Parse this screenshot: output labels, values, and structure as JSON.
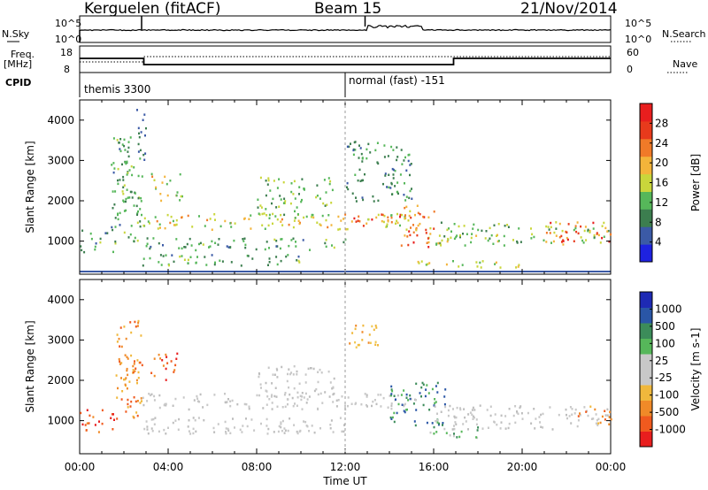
{
  "header": {
    "station": "Kerguelen (fitACF)",
    "beam": "Beam 15",
    "date": "21/Nov/2014"
  },
  "status_panels": {
    "nsky_label": "N.Sky",
    "nsearch_label": "N.Search",
    "freq_label_1": "Freq.",
    "freq_label_2": "[MHz]",
    "nave_label": "Nave",
    "cpid_label": "CPID",
    "left_ticks_top": [
      "10^5",
      "10^0"
    ],
    "right_ticks_top": [
      "10^5",
      "10^0"
    ],
    "left_ticks_freq": [
      "18",
      "8"
    ],
    "right_ticks_nave": [
      "60",
      "0"
    ],
    "cpid_segments": [
      {
        "label": "themis 3300",
        "start_hour": 0
      },
      {
        "label": "normal (fast) -151",
        "start_hour": 12
      }
    ]
  },
  "colors": {
    "power_scale": [
      "#1e22e0",
      "#3b5aa6",
      "#3c7e4f",
      "#56b75a",
      "#c9d63b",
      "#f3b43a",
      "#f07a28",
      "#e83a1c",
      "#e81e1e"
    ],
    "velocity_scale": [
      "#e81e1e",
      "#f05a1e",
      "#f08a28",
      "#f0b83c",
      "#c8c8c8",
      "#c8c8c8",
      "#56b75a",
      "#3c8c5a",
      "#2a56a6",
      "#1e2ab4"
    ]
  },
  "chart_data": [
    {
      "type": "heatmap",
      "title": "Power",
      "ylabel": "Slant Range [km]",
      "xlabel": "",
      "x_range_hours": [
        0,
        24
      ],
      "ylim": [
        180,
        4500
      ],
      "y_ticks": [
        1000,
        2000,
        3000,
        4000
      ],
      "colorbar_label": "Power [dB]",
      "colorbar_ticks": [
        "4",
        "8",
        "12",
        "16",
        "20",
        "24",
        "28"
      ],
      "colorbar_range": [
        0,
        30
      ],
      "scatter_regions": [
        {
          "t0": 0.0,
          "t1": 1.6,
          "r0": 700,
          "r1": 1300,
          "v0": 6,
          "v1": 16
        },
        {
          "t0": 1.4,
          "t1": 2.8,
          "r0": 900,
          "r1": 3600,
          "v0": 6,
          "v1": 14
        },
        {
          "t0": 2.5,
          "t1": 3.0,
          "r0": 3000,
          "r1": 4300,
          "v0": 4,
          "v1": 10
        },
        {
          "t0": 3.2,
          "t1": 4.6,
          "r0": 2000,
          "r1": 2700,
          "v0": 10,
          "v1": 22
        },
        {
          "t0": 2.8,
          "t1": 15.2,
          "r0": 1300,
          "r1": 1700,
          "v0": 10,
          "v1": 22
        },
        {
          "t0": 2.8,
          "t1": 12.0,
          "r0": 800,
          "r1": 1100,
          "v0": 6,
          "v1": 14
        },
        {
          "t0": 2.8,
          "t1": 10.0,
          "r0": 400,
          "r1": 700,
          "v0": 6,
          "v1": 14
        },
        {
          "t0": 8.0,
          "t1": 11.5,
          "r0": 1600,
          "r1": 2600,
          "v0": 8,
          "v1": 16
        },
        {
          "t0": 12.0,
          "t1": 14.5,
          "r0": 1400,
          "r1": 1700,
          "v0": 16,
          "v1": 28
        },
        {
          "t0": 12.0,
          "t1": 15.0,
          "r0": 2000,
          "r1": 3500,
          "v0": 6,
          "v1": 12
        },
        {
          "t0": 14.5,
          "t1": 16.0,
          "r0": 900,
          "r1": 2000,
          "v0": 14,
          "v1": 28
        },
        {
          "t0": 15.0,
          "t1": 16.0,
          "r0": 850,
          "r1": 1100,
          "v0": 22,
          "v1": 30
        },
        {
          "t0": 16.0,
          "t1": 24.0,
          "r0": 900,
          "r1": 1500,
          "v0": 8,
          "v1": 18
        },
        {
          "t0": 15.0,
          "t1": 20.0,
          "r0": 350,
          "r1": 550,
          "v0": 10,
          "v1": 20
        },
        {
          "t0": 21.0,
          "t1": 24.0,
          "r0": 1000,
          "r1": 1500,
          "v0": 16,
          "v1": 28
        }
      ]
    },
    {
      "type": "heatmap",
      "title": "Velocity",
      "ylabel": "Slant Range [km]",
      "xlabel": "Time UT",
      "x_ticks": [
        "00:00",
        "04:00",
        "08:00",
        "12:00",
        "16:00",
        "20:00",
        "00:00"
      ],
      "x_range_hours": [
        0,
        24
      ],
      "ylim": [
        180,
        4500
      ],
      "y_ticks": [
        1000,
        2000,
        3000,
        4000
      ],
      "colorbar_label": "Velocity [m s-1]",
      "colorbar_ticks": [
        "-1000",
        "-500",
        "-100",
        "-25",
        "25",
        "100",
        "500",
        "1000"
      ],
      "scatter_regions": [
        {
          "t0": 0.0,
          "t1": 1.6,
          "r0": 700,
          "r1": 1300,
          "v": "neg-strong"
        },
        {
          "t0": 1.6,
          "t1": 2.8,
          "r0": 1000,
          "r1": 3500,
          "v": "neg-mid"
        },
        {
          "t0": 3.2,
          "t1": 4.6,
          "r0": 2000,
          "r1": 2700,
          "v": "neg-strong"
        },
        {
          "t0": 2.8,
          "t1": 15.2,
          "r0": 1300,
          "r1": 1700,
          "v": "near-zero"
        },
        {
          "t0": 2.8,
          "t1": 12.0,
          "r0": 700,
          "r1": 1100,
          "v": "near-zero"
        },
        {
          "t0": 8.0,
          "t1": 11.5,
          "r0": 1600,
          "r1": 2400,
          "v": "near-zero"
        },
        {
          "t0": 12.0,
          "t1": 13.5,
          "r0": 2800,
          "r1": 3400,
          "v": "neg-weak"
        },
        {
          "t0": 14.0,
          "t1": 16.5,
          "r0": 900,
          "r1": 2000,
          "v": "pos-mid"
        },
        {
          "t0": 15.5,
          "t1": 18.0,
          "r0": 600,
          "r1": 900,
          "v": "pos-weak"
        },
        {
          "t0": 16.0,
          "t1": 24.0,
          "r0": 800,
          "r1": 1400,
          "v": "near-zero"
        },
        {
          "t0": 22.5,
          "t1": 24.0,
          "r0": 900,
          "r1": 1400,
          "v": "neg-mid"
        }
      ]
    }
  ]
}
